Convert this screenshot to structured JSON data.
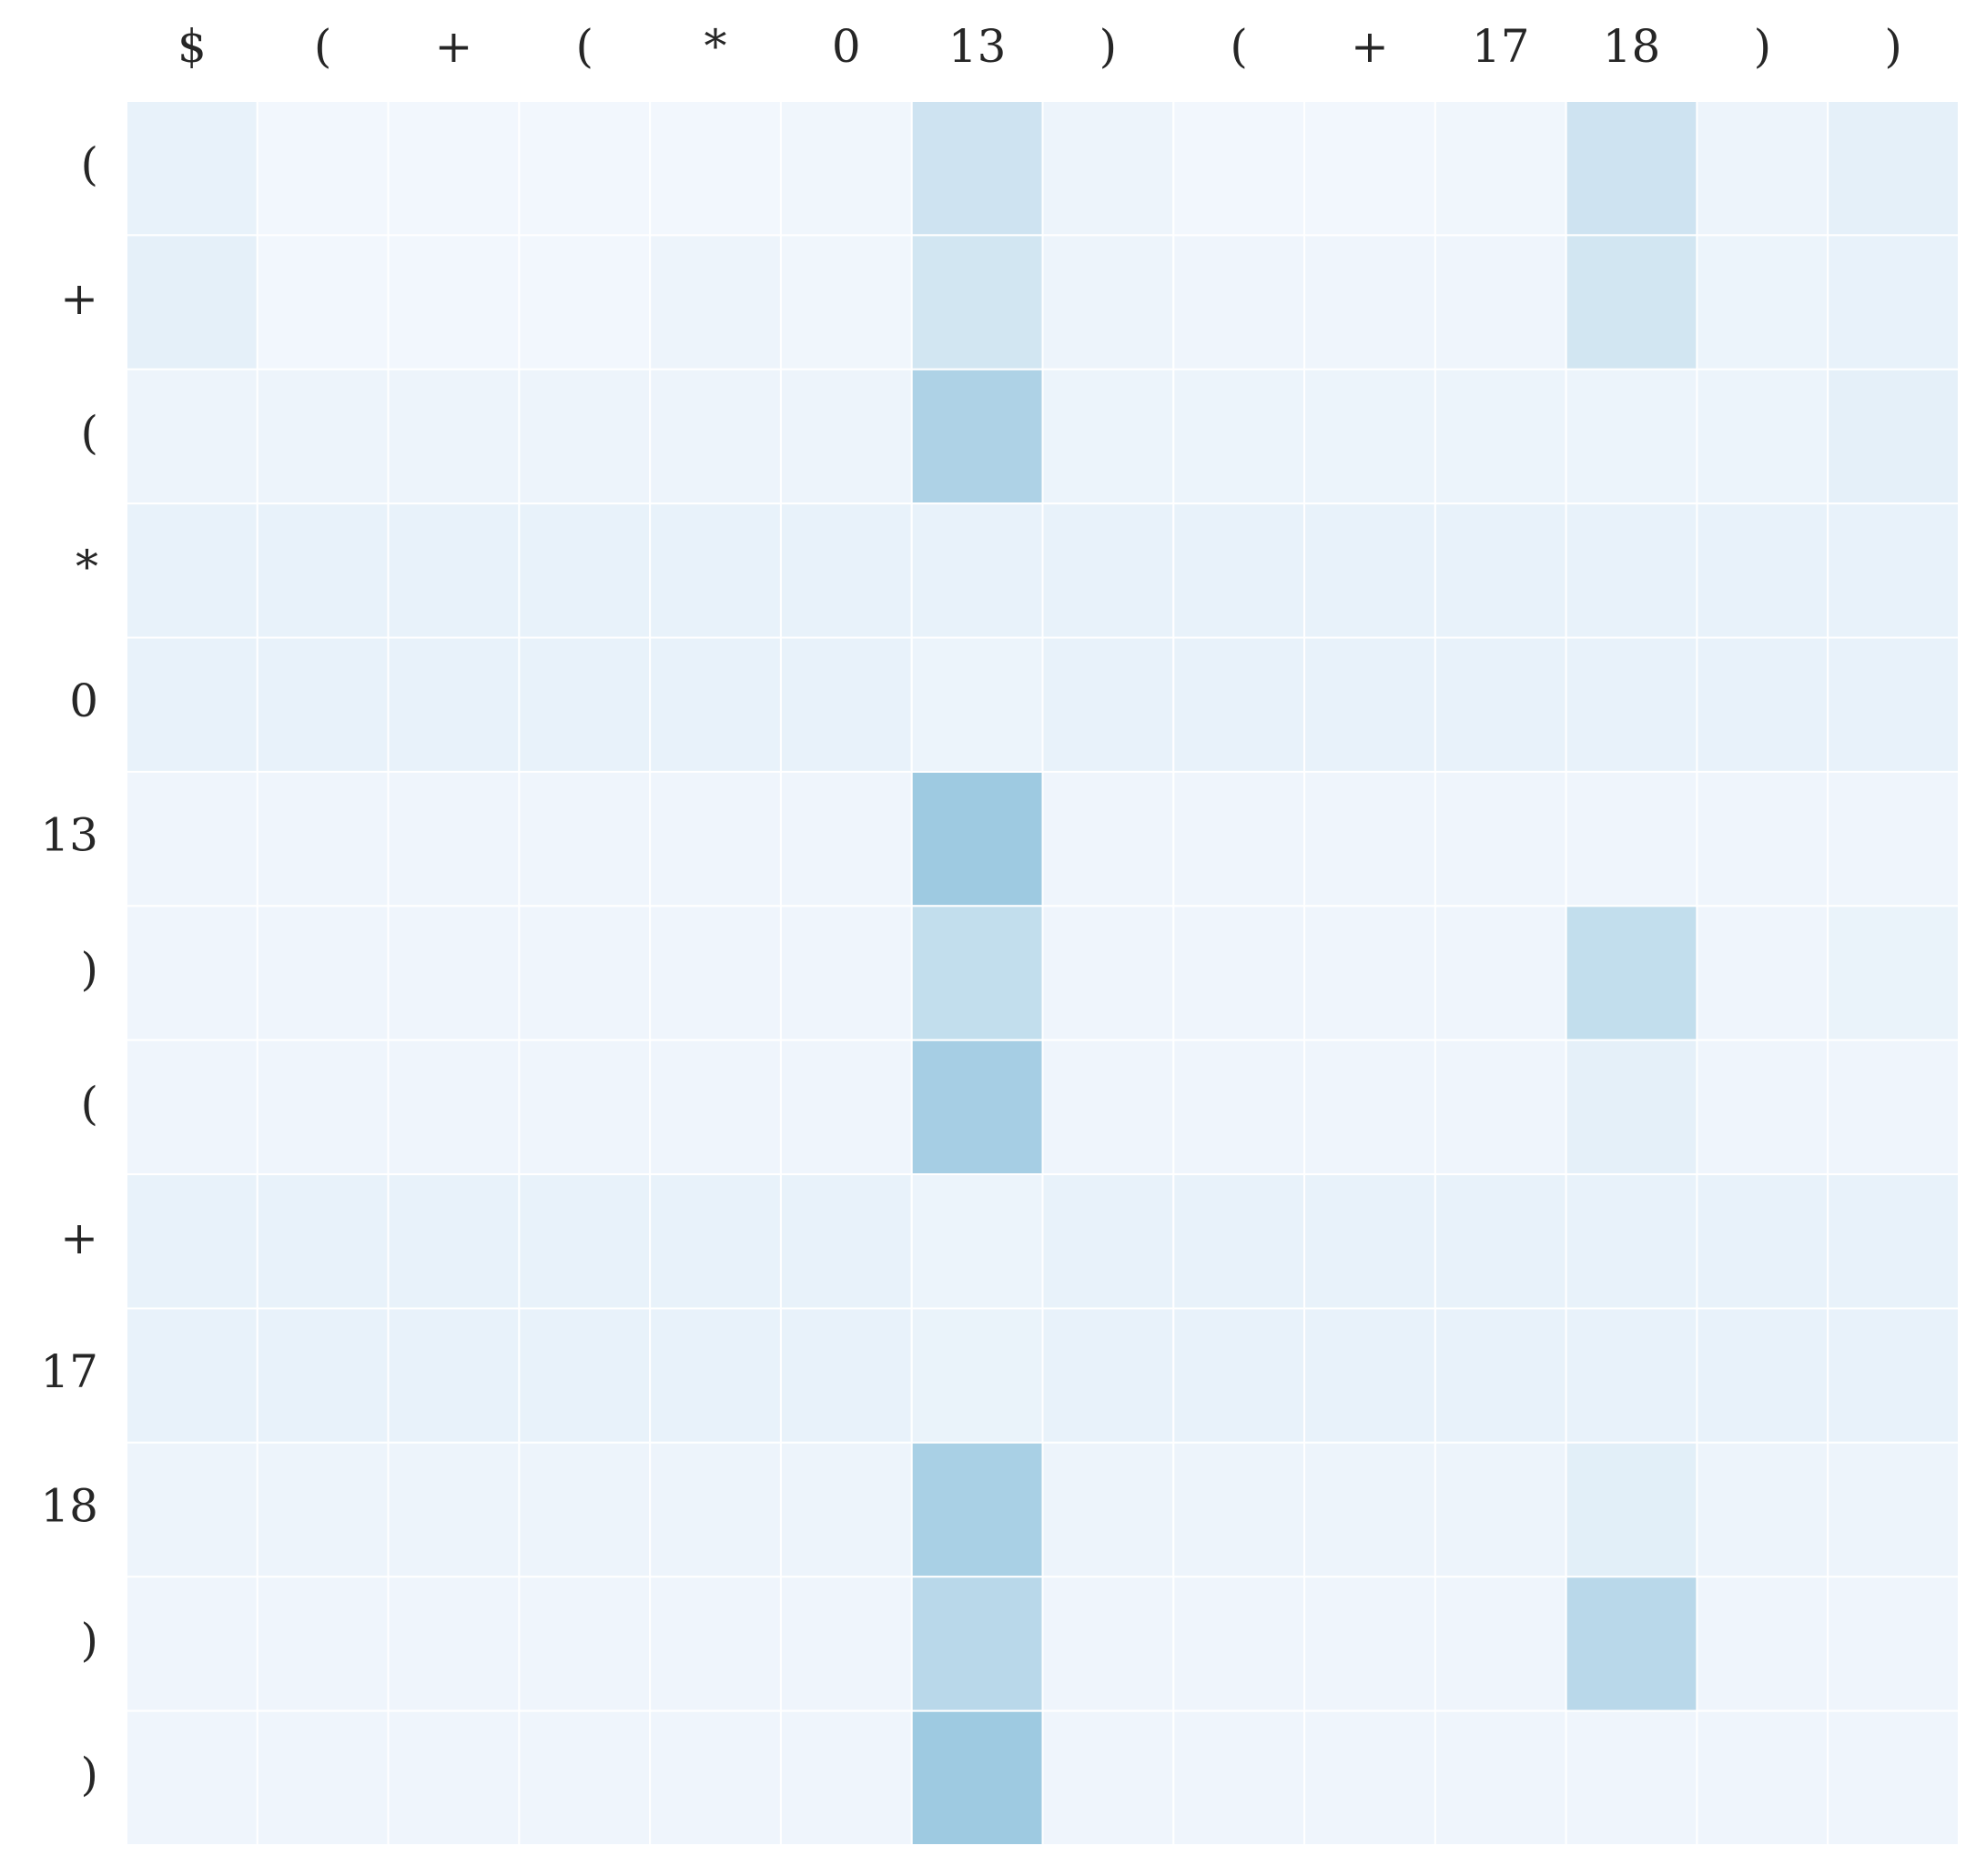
{
  "chart_data": {
    "type": "heatmap",
    "x": [
      "$",
      "(",
      "+",
      "(",
      "*",
      "0",
      "13",
      ")",
      "(",
      "+",
      "17",
      "18",
      ")",
      ")"
    ],
    "y": [
      "(",
      "+",
      "(",
      "*",
      "0",
      "13",
      ")",
      "(",
      "+",
      "17",
      "18",
      ")",
      ")"
    ],
    "values": [
      [
        0.08,
        0.02,
        0.02,
        0.02,
        0.02,
        0.03,
        0.25,
        0.05,
        0.02,
        0.02,
        0.03,
        0.25,
        0.05,
        0.1
      ],
      [
        0.1,
        0.02,
        0.02,
        0.02,
        0.05,
        0.03,
        0.22,
        0.05,
        0.04,
        0.04,
        0.04,
        0.22,
        0.06,
        0.08
      ],
      [
        0.05,
        0.05,
        0.05,
        0.05,
        0.05,
        0.05,
        0.45,
        0.06,
        0.06,
        0.06,
        0.06,
        0.06,
        0.06,
        0.1
      ],
      [
        0.08,
        0.08,
        0.08,
        0.08,
        0.08,
        0.08,
        0.08,
        0.08,
        0.08,
        0.08,
        0.08,
        0.08,
        0.08,
        0.08
      ],
      [
        0.08,
        0.08,
        0.08,
        0.08,
        0.08,
        0.08,
        0.06,
        0.08,
        0.08,
        0.08,
        0.08,
        0.08,
        0.08,
        0.08
      ],
      [
        0.04,
        0.04,
        0.04,
        0.04,
        0.04,
        0.04,
        0.55,
        0.04,
        0.04,
        0.04,
        0.04,
        0.04,
        0.04,
        0.04
      ],
      [
        0.04,
        0.04,
        0.04,
        0.04,
        0.04,
        0.04,
        0.32,
        0.04,
        0.04,
        0.04,
        0.04,
        0.32,
        0.04,
        0.07
      ],
      [
        0.04,
        0.04,
        0.04,
        0.04,
        0.04,
        0.04,
        0.5,
        0.04,
        0.04,
        0.04,
        0.04,
        0.1,
        0.04,
        0.04
      ],
      [
        0.08,
        0.08,
        0.08,
        0.08,
        0.08,
        0.08,
        0.06,
        0.08,
        0.08,
        0.08,
        0.08,
        0.08,
        0.08,
        0.08
      ],
      [
        0.08,
        0.08,
        0.08,
        0.08,
        0.08,
        0.08,
        0.07,
        0.08,
        0.08,
        0.08,
        0.08,
        0.08,
        0.08,
        0.08
      ],
      [
        0.05,
        0.05,
        0.05,
        0.05,
        0.05,
        0.05,
        0.48,
        0.05,
        0.05,
        0.05,
        0.05,
        0.12,
        0.05,
        0.05
      ],
      [
        0.04,
        0.04,
        0.04,
        0.04,
        0.04,
        0.04,
        0.38,
        0.04,
        0.04,
        0.04,
        0.04,
        0.38,
        0.04,
        0.04
      ],
      [
        0.04,
        0.04,
        0.04,
        0.04,
        0.04,
        0.04,
        0.55,
        0.04,
        0.04,
        0.04,
        0.04,
        0.04,
        0.04,
        0.04
      ]
    ],
    "colorscale": [
      "#f2f7fd",
      "#9ecae1"
    ]
  }
}
